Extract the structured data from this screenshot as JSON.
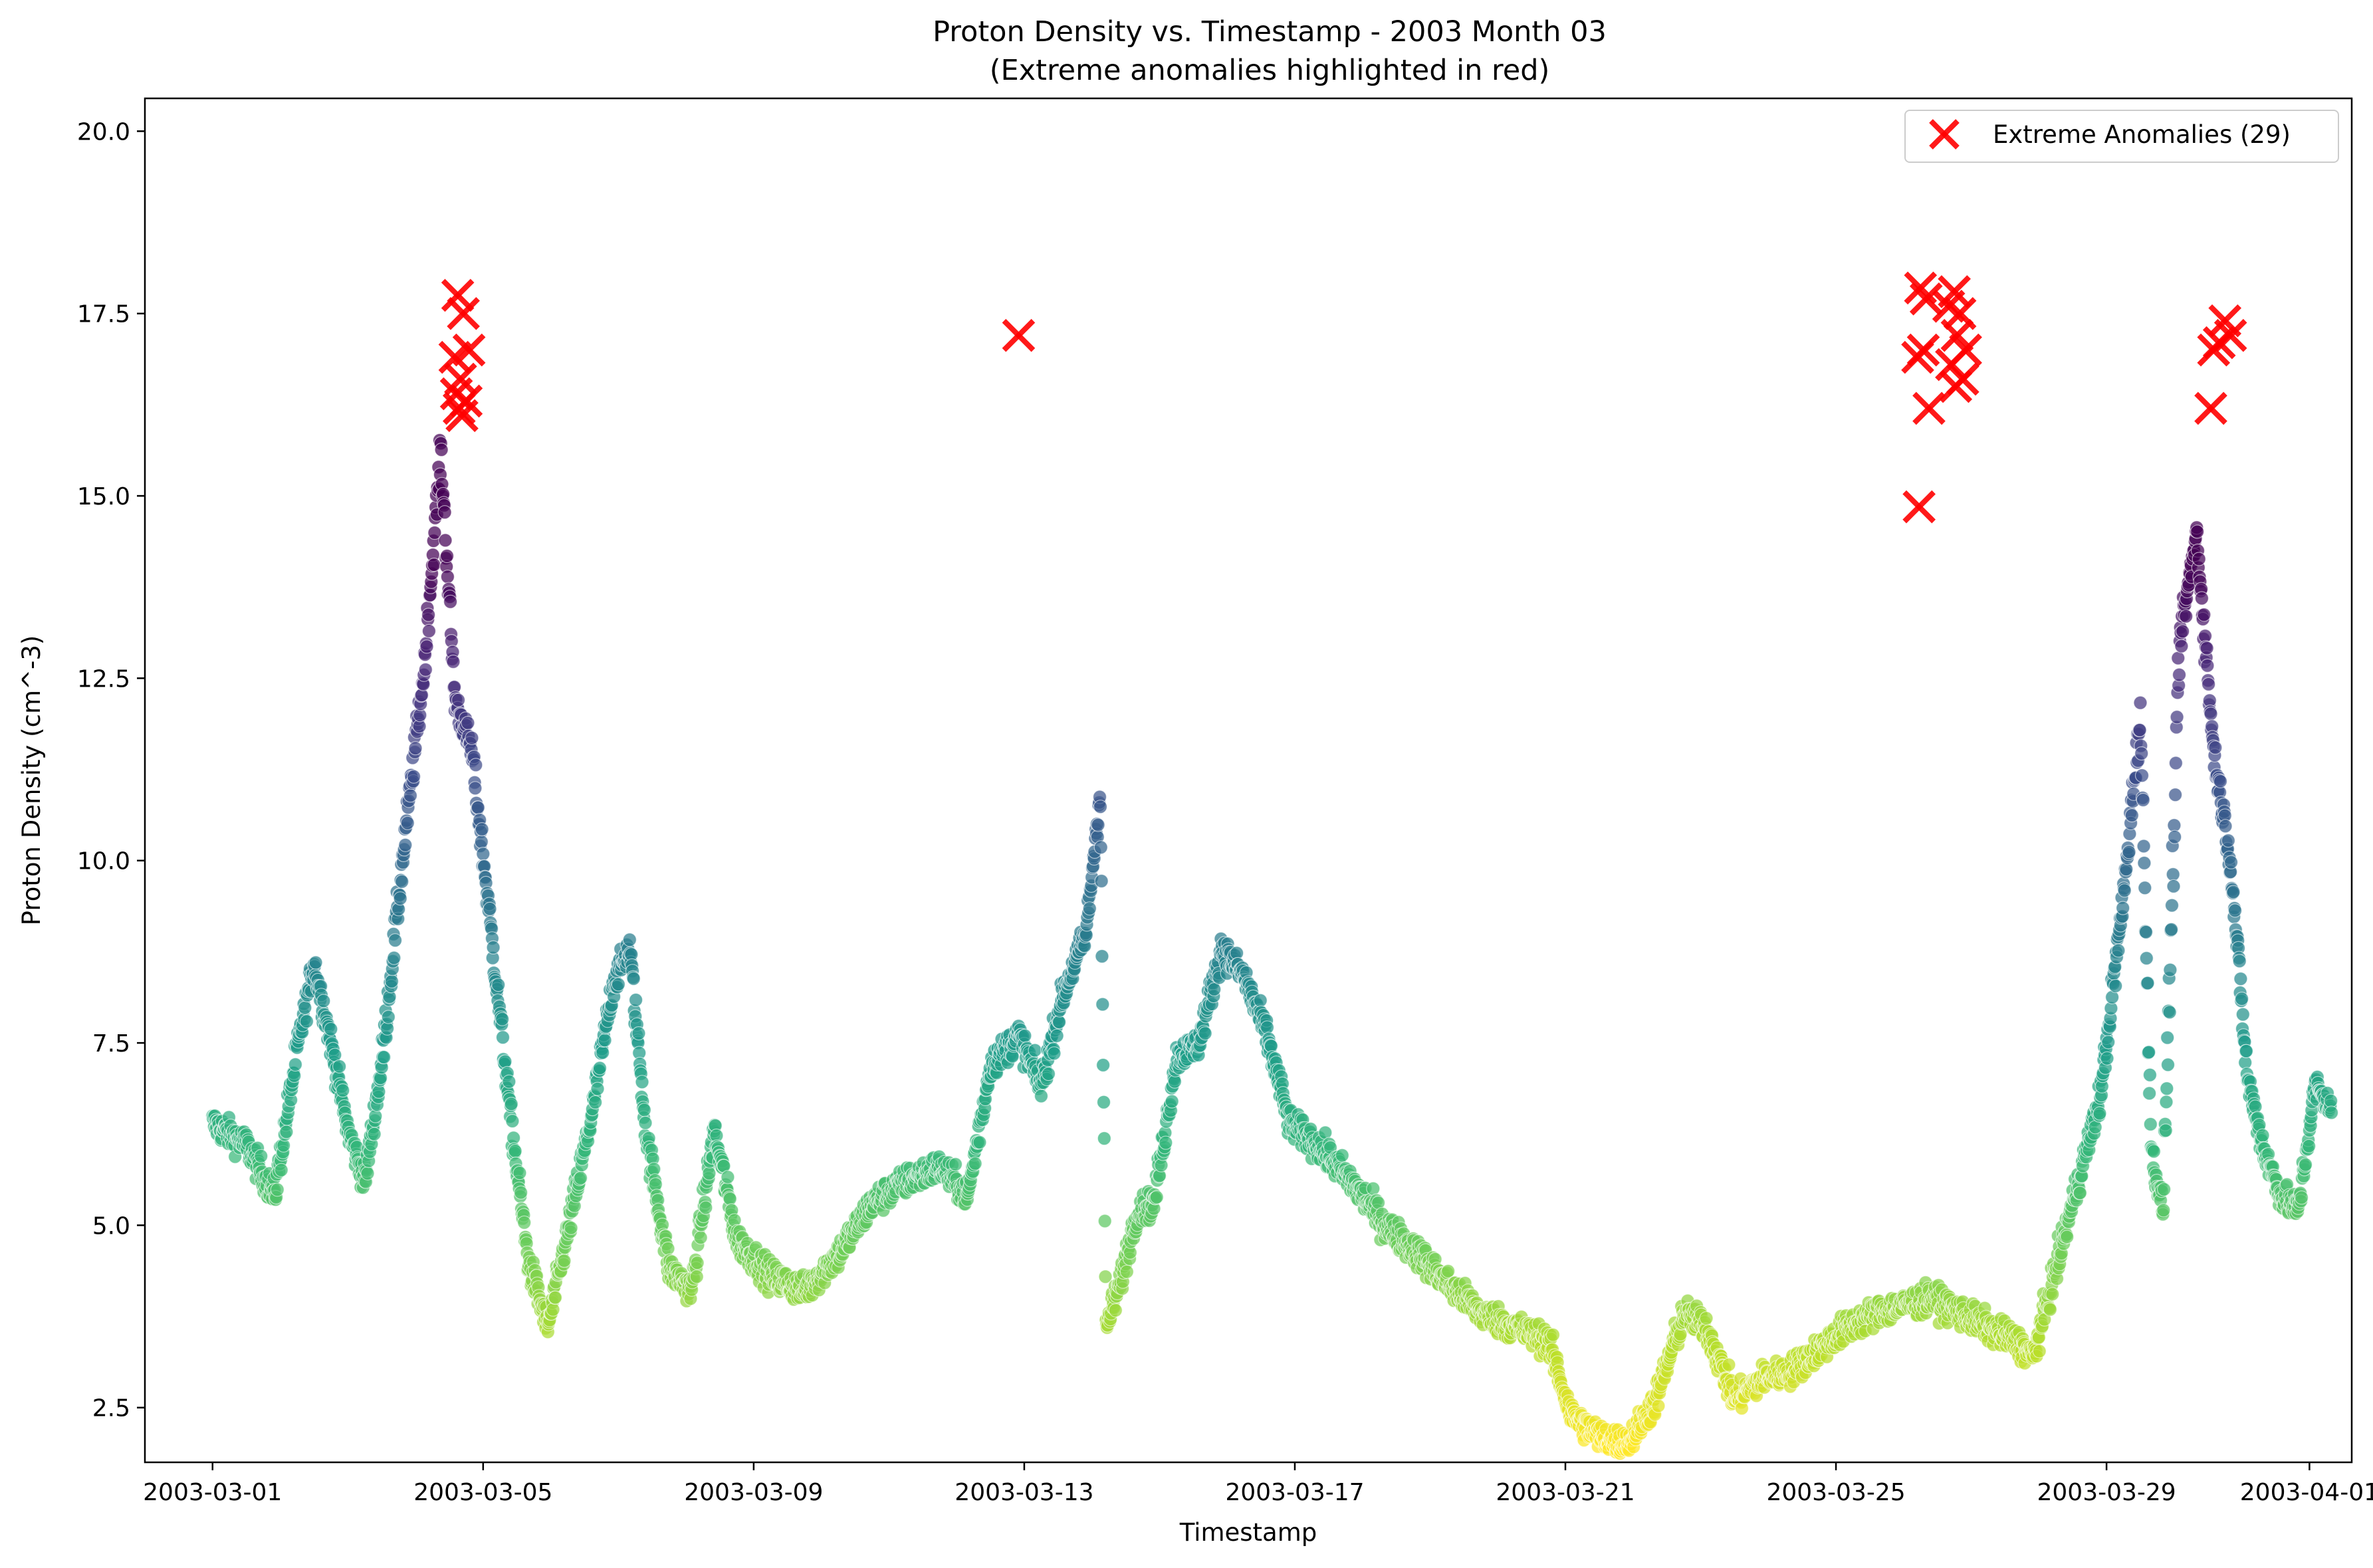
{
  "chart_data": {
    "type": "scatter",
    "title": "Proton Density vs. Timestamp - 2003 Month 03",
    "subtitle": "(Extreme anomalies highlighted in red)",
    "xlabel": "Timestamp",
    "ylabel": "Proton Density (cm^-3)",
    "xlim": [
      "2003-02-28T00:00",
      "2003-04-01T15:00"
    ],
    "ylim": [
      1.75,
      20.45
    ],
    "x_ticks": [
      "2003-03-01",
      "2003-03-05",
      "2003-03-09",
      "2003-03-13",
      "2003-03-17",
      "2003-03-21",
      "2003-03-25",
      "2003-03-29",
      "2003-04-01"
    ],
    "y_ticks": [
      "2.5",
      "5.0",
      "7.5",
      "10.0",
      "12.5",
      "15.0",
      "17.5",
      "20.0"
    ],
    "grid": false,
    "legend_position": "top-right",
    "colormap": "viridis",
    "series": [
      {
        "name": "",
        "color_by": "density",
        "trace": [
          [
            "2003-03-01T00:00",
            6.4
          ],
          [
            "2003-03-01T12:00",
            6.1
          ],
          [
            "2003-03-01T22:00",
            5.4
          ],
          [
            "2003-03-02T06:00",
            7.4
          ],
          [
            "2003-03-02T12:00",
            8.6
          ],
          [
            "2003-03-02T18:00",
            7.5
          ],
          [
            "2003-03-03T00:00",
            6.3
          ],
          [
            "2003-03-03T06:00",
            5.6
          ],
          [
            "2003-03-03T12:00",
            7.2
          ],
          [
            "2003-03-03T20:00",
            10.2
          ],
          [
            "2003-03-04T03:00",
            12.6
          ],
          [
            "2003-03-04T09:00",
            15.6
          ],
          [
            "2003-03-04T14:00",
            12.2
          ],
          [
            "2003-03-04T20:00",
            11.5
          ],
          [
            "2003-03-05T04:00",
            8.6
          ],
          [
            "2003-03-05T10:00",
            6.4
          ],
          [
            "2003-03-05T16:00",
            4.5
          ],
          [
            "2003-03-05T23:00",
            3.6
          ],
          [
            "2003-03-06T06:00",
            4.9
          ],
          [
            "2003-03-06T15:00",
            6.6
          ],
          [
            "2003-03-06T22:00",
            8.3
          ],
          [
            "2003-03-07T04:00",
            8.8
          ],
          [
            "2003-03-07T10:00",
            6.2
          ],
          [
            "2003-03-07T18:00",
            4.4
          ],
          [
            "2003-03-08T02:00",
            4.1
          ],
          [
            "2003-03-08T10:00",
            6.3
          ],
          [
            "2003-03-08T18:00",
            4.8
          ],
          [
            "2003-03-09T06:00",
            4.3
          ],
          [
            "2003-03-09T18:00",
            4.1
          ],
          [
            "2003-03-10T06:00",
            4.6
          ],
          [
            "2003-03-10T18:00",
            5.3
          ],
          [
            "2003-03-11T06:00",
            5.6
          ],
          [
            "2003-03-11T18:00",
            5.8
          ],
          [
            "2003-03-12T04:00",
            5.4
          ],
          [
            "2003-03-12T12:00",
            7.2
          ],
          [
            "2003-03-12T22:00",
            7.6
          ],
          [
            "2003-03-13T06:00",
            6.9
          ],
          [
            "2003-03-13T14:00",
            8.2
          ],
          [
            "2003-03-13T22:00",
            9.0
          ],
          [
            "2003-03-14T03:00",
            11.0
          ],
          [
            "2003-03-14T05:00",
            3.6
          ],
          [
            "2003-03-14T10:00",
            4.2
          ],
          [
            "2003-03-14T16:00",
            5.2
          ],
          [
            "2003-03-14T22:00",
            5.3
          ],
          [
            "2003-03-15T06:00",
            7.3
          ],
          [
            "2003-03-15T14:00",
            7.5
          ],
          [
            "2003-03-15T22:00",
            8.8
          ],
          [
            "2003-03-16T06:00",
            8.4
          ],
          [
            "2003-03-16T14:00",
            7.6
          ],
          [
            "2003-03-16T22:00",
            6.4
          ],
          [
            "2003-03-17T08:00",
            6.1
          ],
          [
            "2003-03-17T20:00",
            5.6
          ],
          [
            "2003-03-18T08:00",
            5.0
          ],
          [
            "2003-03-18T20:00",
            4.6
          ],
          [
            "2003-03-19T06:00",
            4.2
          ],
          [
            "2003-03-19T18:00",
            3.8
          ],
          [
            "2003-03-20T06:00",
            3.6
          ],
          [
            "2003-03-20T18:00",
            3.4
          ],
          [
            "2003-03-21T02:00",
            2.4
          ],
          [
            "2003-03-21T12:00",
            2.1
          ],
          [
            "2003-03-21T22:00",
            2.0
          ],
          [
            "2003-03-22T08:00",
            2.6
          ],
          [
            "2003-03-22T18:00",
            3.8
          ],
          [
            "2003-03-23T02:00",
            3.6
          ],
          [
            "2003-03-23T12:00",
            2.6
          ],
          [
            "2003-03-23T22:00",
            2.9
          ],
          [
            "2003-03-24T08:00",
            3.0
          ],
          [
            "2003-03-24T18:00",
            3.3
          ],
          [
            "2003-03-25T04:00",
            3.6
          ],
          [
            "2003-03-25T14:00",
            3.8
          ],
          [
            "2003-03-26T00:00",
            3.9
          ],
          [
            "2003-03-26T10:00",
            4.0
          ],
          [
            "2003-03-26T20:00",
            3.8
          ],
          [
            "2003-03-27T06:00",
            3.6
          ],
          [
            "2003-03-27T16:00",
            3.4
          ],
          [
            "2003-03-27T22:00",
            3.2
          ],
          [
            "2003-03-28T06:00",
            4.4
          ],
          [
            "2003-03-28T14:00",
            5.6
          ],
          [
            "2003-03-28T22:00",
            6.8
          ],
          [
            "2003-03-29T06:00",
            9.5
          ],
          [
            "2003-03-29T12:00",
            12.0
          ],
          [
            "2003-03-29T16:00",
            6.0
          ],
          [
            "2003-03-29T20:00",
            5.2
          ],
          [
            "2003-03-30T02:00",
            13.0
          ],
          [
            "2003-03-30T08:00",
            14.5
          ],
          [
            "2003-03-30T14:00",
            11.5
          ],
          [
            "2003-03-30T20:00",
            10.0
          ],
          [
            "2003-03-31T02:00",
            7.0
          ],
          [
            "2003-03-31T08:00",
            6.0
          ],
          [
            "2003-03-31T14:00",
            5.4
          ],
          [
            "2003-03-31T20:00",
            5.2
          ],
          [
            "2003-04-01T02:00",
            6.9
          ],
          [
            "2003-04-01T08:00",
            6.6
          ]
        ]
      },
      {
        "name": "Extreme Anomalies (29)",
        "color": "#ff0000",
        "marker": "x",
        "points": [
          [
            "2003-03-04T15:00",
            17.75
          ],
          [
            "2003-03-04T17:00",
            17.5
          ],
          [
            "2003-03-04T14:00",
            16.9
          ],
          [
            "2003-03-04T16:00",
            16.6
          ],
          [
            "2003-03-04T18:00",
            16.3
          ],
          [
            "2003-03-04T15:30",
            16.2
          ],
          [
            "2003-03-04T16:30",
            16.1
          ],
          [
            "2003-03-04T19:00",
            17.0
          ],
          [
            "2003-03-04T14:30",
            16.4
          ],
          [
            "2003-03-12T22:00",
            17.2
          ],
          [
            "2003-03-26T06:00",
            17.85
          ],
          [
            "2003-03-26T08:00",
            17.7
          ],
          [
            "2003-03-26T07:00",
            17.0
          ],
          [
            "2003-03-26T05:00",
            16.9
          ],
          [
            "2003-03-26T09:00",
            16.2
          ],
          [
            "2003-03-26T05:30",
            14.85
          ],
          [
            "2003-03-26T18:00",
            17.8
          ],
          [
            "2003-03-26T20:00",
            17.5
          ],
          [
            "2003-03-26T19:00",
            17.2
          ],
          [
            "2003-03-26T17:00",
            16.8
          ],
          [
            "2003-03-26T21:00",
            16.6
          ],
          [
            "2003-03-26T22:00",
            17.0
          ],
          [
            "2003-03-26T18:30",
            16.5
          ],
          [
            "2003-03-26T16:00",
            17.6
          ],
          [
            "2003-03-30T18:00",
            17.4
          ],
          [
            "2003-03-30T16:00",
            17.1
          ],
          [
            "2003-03-30T14:00",
            17.0
          ],
          [
            "2003-03-30T13:00",
            16.2
          ],
          [
            "2003-03-30T20:00",
            17.2
          ]
        ]
      }
    ],
    "colors": {
      "anomaly": "#ff0000",
      "axis": "#000000",
      "background": "#ffffff"
    }
  }
}
